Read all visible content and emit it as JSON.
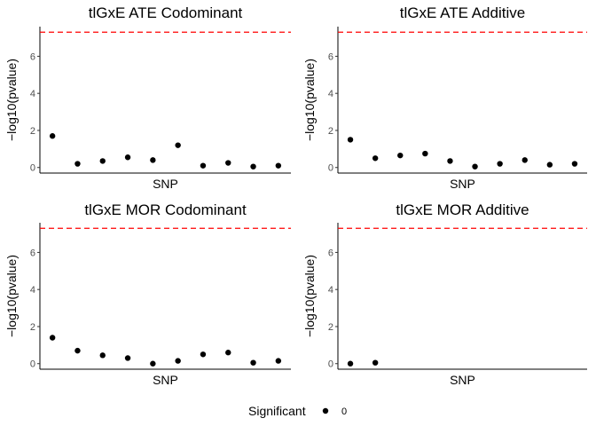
{
  "chart_data": [
    {
      "type": "scatter",
      "title": "tlGxE ATE Codominant",
      "xlabel": "SNP",
      "ylabel": "−log10(pvalue)",
      "ylim": [
        -0.3,
        7.6
      ],
      "yticks": [
        0,
        2,
        4,
        6
      ],
      "threshold": 7.3,
      "x": [
        1,
        2,
        3,
        4,
        5,
        6,
        7,
        8,
        9,
        10
      ],
      "y": [
        1.7,
        0.2,
        0.35,
        0.55,
        0.4,
        1.2,
        0.1,
        0.25,
        0.05,
        0.1
      ]
    },
    {
      "type": "scatter",
      "title": "tlGxE ATE Additive",
      "xlabel": "SNP",
      "ylabel": "−log10(pvalue)",
      "ylim": [
        -0.3,
        7.6
      ],
      "yticks": [
        0,
        2,
        4,
        6
      ],
      "threshold": 7.3,
      "x": [
        1,
        2,
        3,
        4,
        5,
        6,
        7,
        8,
        9,
        10
      ],
      "y": [
        1.5,
        0.5,
        0.65,
        0.75,
        0.35,
        0.05,
        0.2,
        0.4,
        0.15,
        0.2
      ]
    },
    {
      "type": "scatter",
      "title": "tlGxE MOR Codominant",
      "xlabel": "SNP",
      "ylabel": "−log10(pvalue)",
      "ylim": [
        -0.3,
        7.6
      ],
      "yticks": [
        0,
        2,
        4,
        6
      ],
      "threshold": 7.3,
      "x": [
        1,
        2,
        3,
        4,
        5,
        6,
        7,
        8,
        9,
        10
      ],
      "y": [
        1.4,
        0.7,
        0.45,
        0.3,
        0.0,
        0.15,
        0.5,
        0.6,
        0.05,
        0.15
      ]
    },
    {
      "type": "scatter",
      "title": "tlGxE MOR Additive",
      "xlabel": "SNP",
      "ylabel": "−log10(pvalue)",
      "ylim": [
        -0.3,
        7.6
      ],
      "yticks": [
        0,
        2,
        4,
        6
      ],
      "threshold": 7.3,
      "x": [
        1,
        2
      ],
      "y": [
        0.0,
        0.05
      ]
    }
  ],
  "legend": {
    "title": "Significant",
    "labels": [
      "0"
    ],
    "position": "bottom"
  },
  "colors": {
    "points": "#000000",
    "threshold": "#ff0000",
    "axis": "#000000",
    "tick_text": "#4d4d4d"
  }
}
